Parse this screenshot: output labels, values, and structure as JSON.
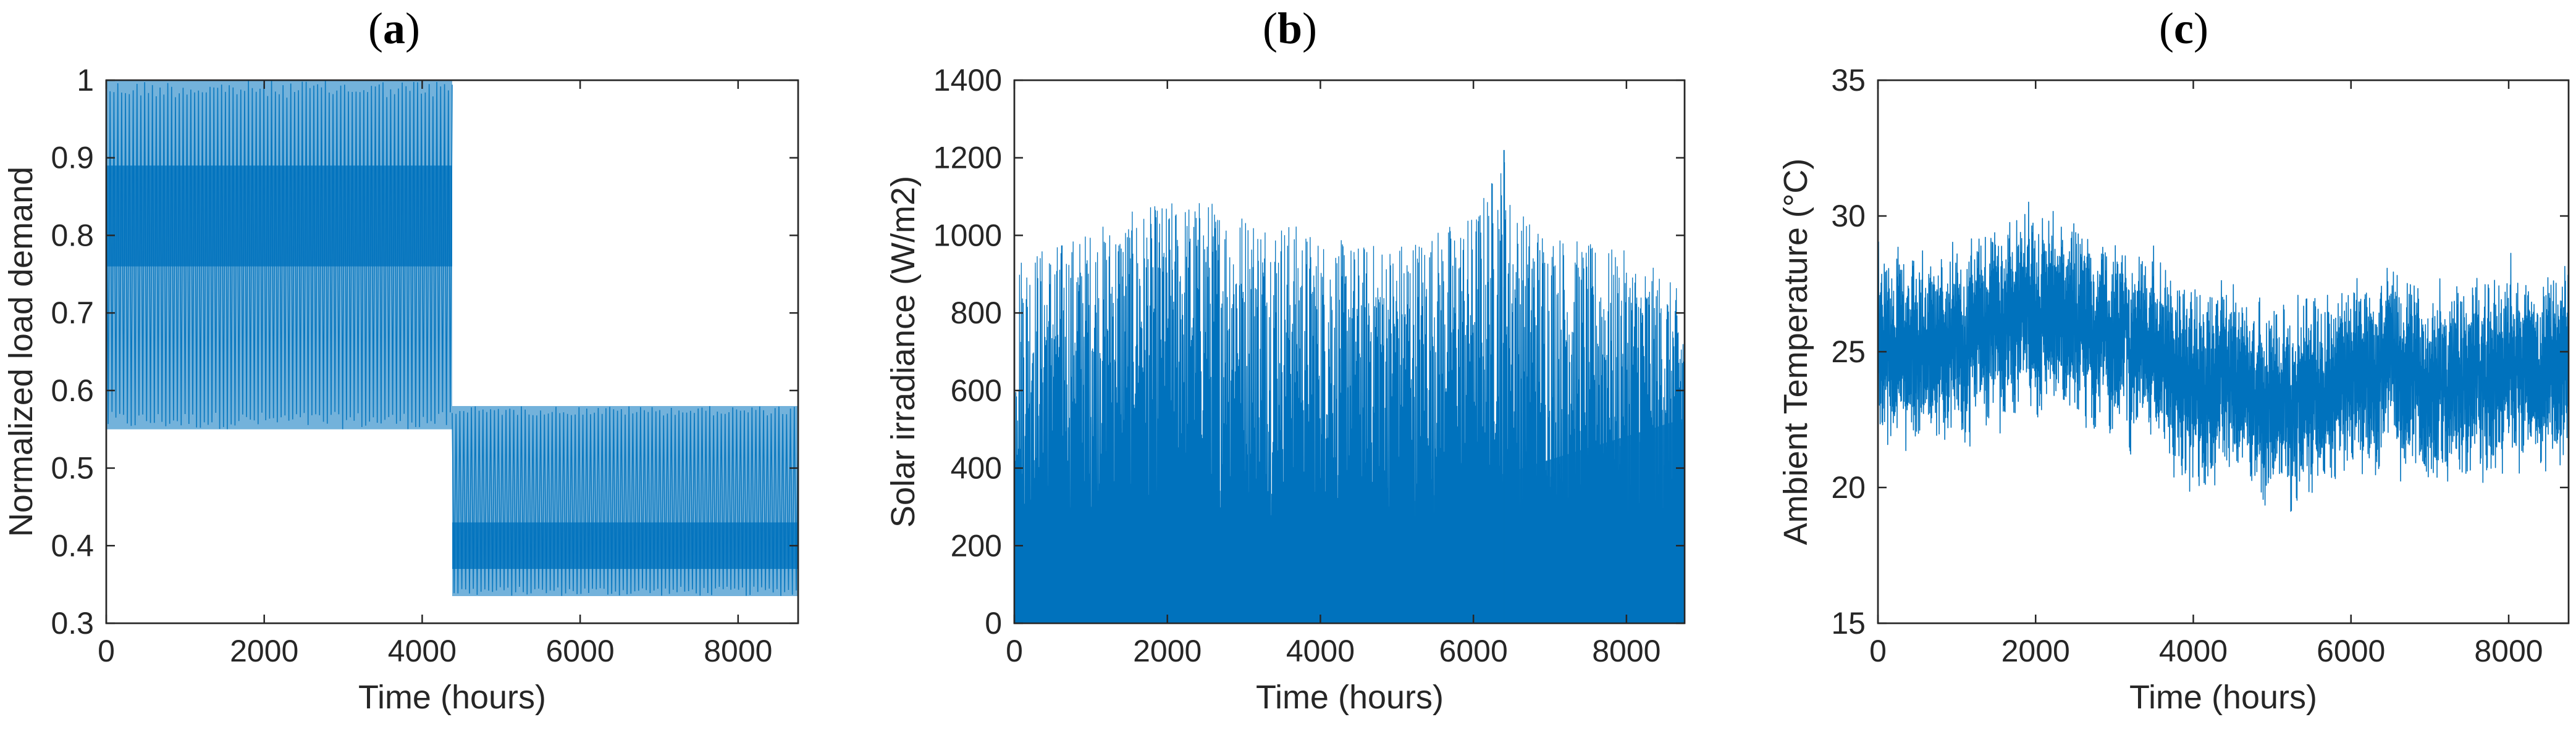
{
  "figure": {
    "line_color": "#0072BD",
    "axis_color": "#262626"
  },
  "chart_data": [
    {
      "type": "line",
      "panel": "(a)",
      "panel_letter": "a",
      "title": "",
      "xlabel": "Time (hours)",
      "ylabel": "Normalized load demand",
      "xlim": [
        0,
        8760
      ],
      "ylim": [
        0.3,
        1.0
      ],
      "xticks": [
        0,
        2000,
        4000,
        6000,
        8000
      ],
      "yticks": [
        0.3,
        0.4,
        0.5,
        0.6,
        0.7,
        0.8,
        0.9,
        1.0
      ],
      "xtick_labels": [
        "0",
        "2000",
        "4000",
        "6000",
        "8000"
      ],
      "ytick_labels": [
        "0.3",
        "0.4",
        "0.5",
        "0.6",
        "0.7",
        "0.8",
        "0.9",
        "1"
      ],
      "series": [
        {
          "segments": [
            {
              "x_start": 0,
              "x_end": 4380,
              "min": 0.55,
              "max": 1.0,
              "dense_low": 0.76,
              "dense_high": 0.89
            },
            {
              "x_start": 4380,
              "x_end": 8760,
              "min": 0.335,
              "max": 0.58,
              "dense_low": 0.37,
              "dense_high": 0.43
            }
          ]
        }
      ]
    },
    {
      "type": "line",
      "panel": "(b)",
      "panel_letter": "b",
      "title": "",
      "xlabel": "Time (hours)",
      "ylabel": "Solar irradiance (W/m2)",
      "xlim": [
        0,
        8760
      ],
      "ylim": [
        0,
        1400
      ],
      "xticks": [
        0,
        2000,
        4000,
        6000,
        8000
      ],
      "yticks": [
        0,
        200,
        400,
        600,
        800,
        1000,
        1200,
        1400
      ],
      "xtick_labels": [
        "0",
        "2000",
        "4000",
        "6000",
        "8000"
      ],
      "ytick_labels": [
        "0",
        "200",
        "400",
        "600",
        "800",
        "1000",
        "1200",
        "1400"
      ],
      "series": [
        {
          "peak_envelope": {
            "x": [
              0,
              500,
              1000,
              1500,
              2000,
              2500,
              3000,
              3500,
              4000,
              4500,
              5000,
              5500,
              6000,
              6400,
              6500,
              7000,
              7500,
              8000,
              8500,
              8760
            ],
            "y": [
              960,
              980,
              1020,
              1060,
              1090,
              1100,
              1070,
              1050,
              1000,
              980,
              990,
              1020,
              1060,
              1220,
              1080,
              1020,
              980,
              960,
              900,
              840
            ]
          }
        }
      ]
    },
    {
      "type": "line",
      "panel": "(c)",
      "panel_letter": "c",
      "title": "",
      "xlabel": "Time (hours)",
      "ylabel": "Ambient Temperature (°C)",
      "xlim": [
        0,
        8760
      ],
      "ylim": [
        15,
        35
      ],
      "xticks": [
        0,
        2000,
        4000,
        6000,
        8000
      ],
      "yticks": [
        15,
        20,
        25,
        30,
        35
      ],
      "xtick_labels": [
        "0",
        "2000",
        "4000",
        "6000",
        "8000"
      ],
      "ytick_labels": [
        "15",
        "20",
        "25",
        "30",
        "35"
      ],
      "series": [
        {
          "trend": {
            "x": [
              0,
              500,
              1000,
              1500,
              2000,
              2500,
              3000,
              3500,
              4000,
              4500,
              5000,
              5500,
              6000,
              6500,
              7000,
              7500,
              8000,
              8500,
              8760
            ],
            "y": [
              25.5,
              25,
              25,
              26,
              26.5,
              26,
              25.5,
              25,
              23.5,
              24,
              23,
              23.5,
              24,
              24.5,
              23.5,
              24,
              24.5,
              24,
              24.5
            ]
          },
          "amplitude": 2.8,
          "min": 18.3,
          "max": 32.1
        }
      ]
    }
  ]
}
